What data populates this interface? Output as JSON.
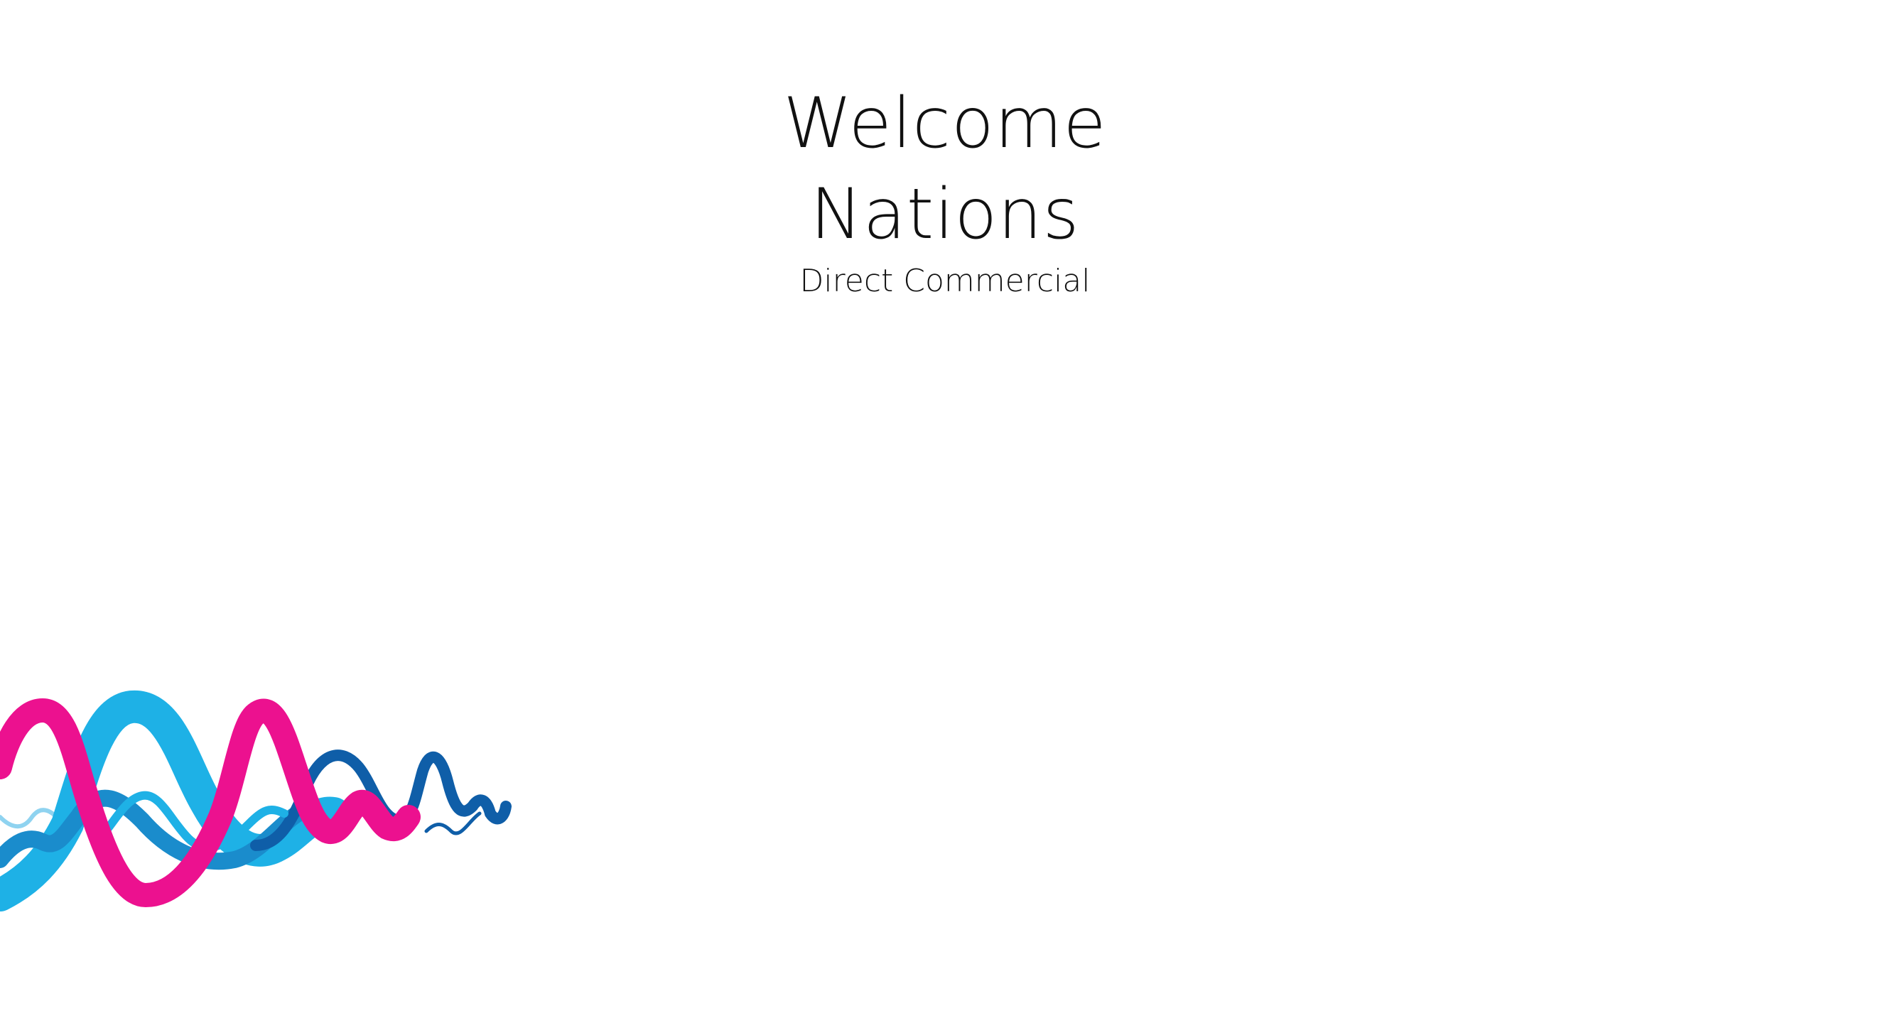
{
  "welcome": {
    "title": "Welcome",
    "name": "Nations",
    "role": "Direct Commercial"
  },
  "brand_wave": {
    "colors": {
      "light_blue": "#8fd3f0",
      "cyan": "#1eb1e6",
      "mid_blue": "#1a8ccc",
      "dark_blue": "#0f5ea8",
      "magenta": "#ec118f"
    }
  }
}
